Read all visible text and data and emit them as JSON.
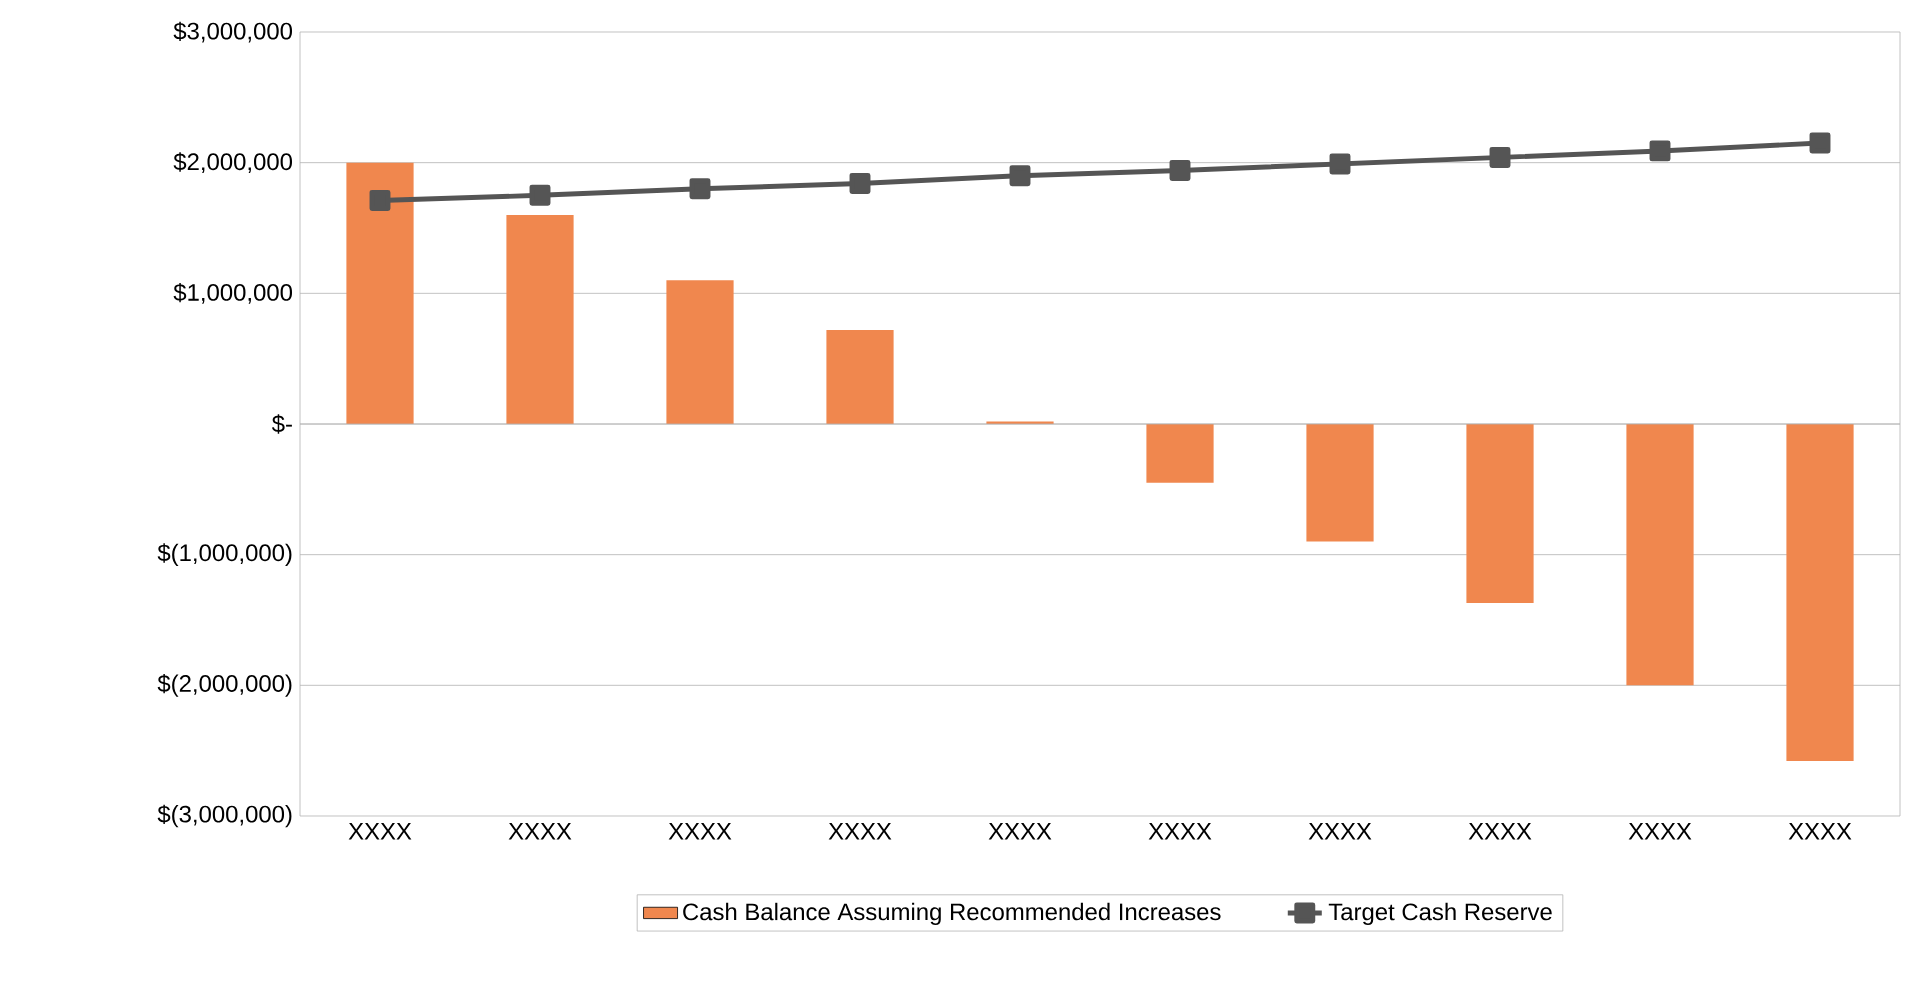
{
  "chart_data": {
    "type": "bar",
    "categories": [
      "XXXX",
      "XXXX",
      "XXXX",
      "XXXX",
      "XXXX",
      "XXXX",
      "XXXX",
      "XXXX",
      "XXXX",
      "XXXX"
    ],
    "series": [
      {
        "name": "Cash Balance Assuming Recommended Increases",
        "color": "#f0874e",
        "values": [
          2000000,
          1600000,
          1100000,
          720000,
          20000,
          -450000,
          -900000,
          -1370000,
          -2000000,
          -2580000
        ]
      },
      {
        "name": "Target Cash Reserve",
        "type": "line",
        "color": "#555555",
        "marker": "square",
        "values": [
          1710000,
          1750000,
          1800000,
          1840000,
          1900000,
          1940000,
          1990000,
          2040000,
          2090000,
          2150000
        ]
      }
    ],
    "ylim": [
      -3000000,
      3000000
    ],
    "yticks": [
      {
        "value": -3000000,
        "label": "$(3,000,000)"
      },
      {
        "value": -2000000,
        "label": "$(2,000,000)"
      },
      {
        "value": -1000000,
        "label": "$(1,000,000)"
      },
      {
        "value": 0,
        "label": "$-"
      },
      {
        "value": 1000000,
        "label": "$1,000,000"
      },
      {
        "value": 2000000,
        "label": "$2,000,000"
      },
      {
        "value": 3000000,
        "label": "$3,000,000"
      }
    ],
    "grid": "y",
    "legend": "bottom"
  }
}
